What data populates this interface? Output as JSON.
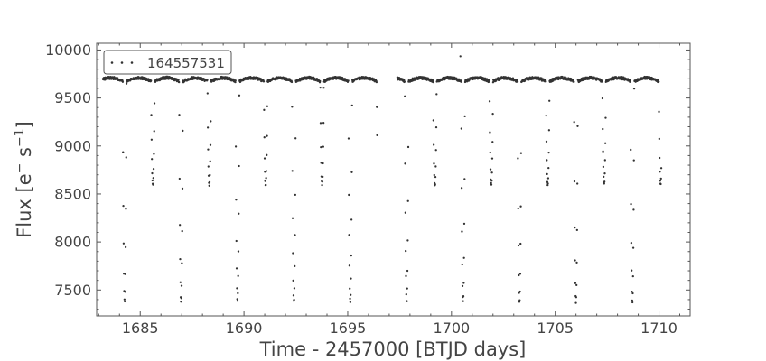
{
  "chart_data": {
    "type": "scatter",
    "xlabel": "Time - 2457000 [BTJD days]",
    "ylabel_main": "Flux [e",
    "ylabel_sup1": "−",
    "ylabel_mid": " s",
    "ylabel_sup2": "−1",
    "ylabel_end": "]",
    "xlim": [
      1682.9,
      1711.5
    ],
    "ylim": [
      7230,
      10070
    ],
    "x_ticks_major": [
      1685,
      1690,
      1695,
      1700,
      1705,
      1710
    ],
    "x_tick_labels": [
      "1685",
      "1690",
      "1695",
      "1700",
      "1705",
      "1710"
    ],
    "y_ticks_major": [
      7500,
      8000,
      8500,
      9000,
      9500,
      10000
    ],
    "y_tick_labels": [
      "7500",
      "8000",
      "8500",
      "9000",
      "9500",
      "10000"
    ],
    "x_minor_step": 1,
    "y_minor_step": 100,
    "legend": {
      "label": "164557531",
      "position": "top-left"
    },
    "marker_color": "#333333",
    "series": [
      {
        "name": "164557531",
        "model": {
          "period": 2.7183,
          "primary_epoch": 1684.25,
          "primary_depth": 2290,
          "primary_half_width": 0.09,
          "secondary_depth": 1070,
          "secondary_half_width": 0.085,
          "baseline": 9665,
          "hump_amplitude": 45,
          "sampling_days": 0.0139,
          "x_start": 1683.2,
          "x_end": 1710.12,
          "gap_start": 1696.42,
          "gap_end": 1697.38,
          "outlier": [
            1700.43,
            9935
          ]
        }
      }
    ]
  }
}
